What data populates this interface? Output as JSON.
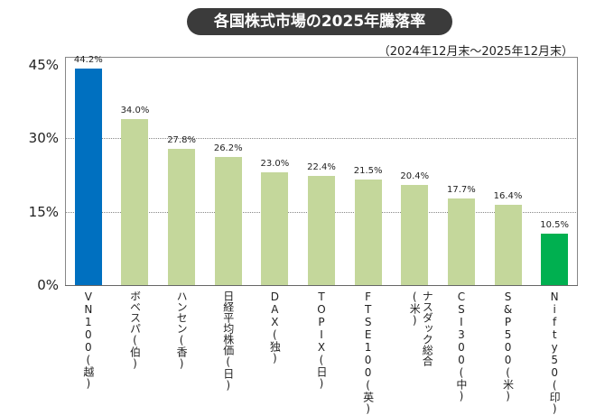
{
  "chart_data": {
    "type": "bar",
    "title": "各国株式市場の2025年騰落率",
    "subtitle": "（2024年12月末～2025年12月末）",
    "categories": [
      "VN100(越)",
      "ボベスパ(伯)",
      "ハンセン(香)",
      "日経平均株価(日)",
      "DAX(独)",
      "TOPIX(日)",
      "FTSE100(英)",
      "ナスダック総合(米)",
      "CSI300(中)",
      "S&P500(米)",
      "Nifty50(印)"
    ],
    "values": [
      44.2,
      34.0,
      27.8,
      26.2,
      23.0,
      22.4,
      21.5,
      20.4,
      17.7,
      16.4,
      10.5
    ],
    "value_labels": [
      "44.2%",
      "34.0%",
      "27.8%",
      "26.2%",
      "23.0%",
      "22.4%",
      "21.5%",
      "20.4%",
      "17.7%",
      "16.4%",
      "10.5%"
    ],
    "yticks": [
      0,
      15,
      30,
      45
    ],
    "ytick_labels": [
      "0%",
      "15%",
      "30%",
      "45%"
    ],
    "ylim": [
      0,
      45
    ],
    "grid": true,
    "xlabel": "",
    "ylabel": "",
    "colors": {
      "default": "#c4d79b",
      "highlight_high": "#0070c0",
      "highlight_low": "#00b050",
      "title_bg": "#3b3b3b"
    }
  }
}
